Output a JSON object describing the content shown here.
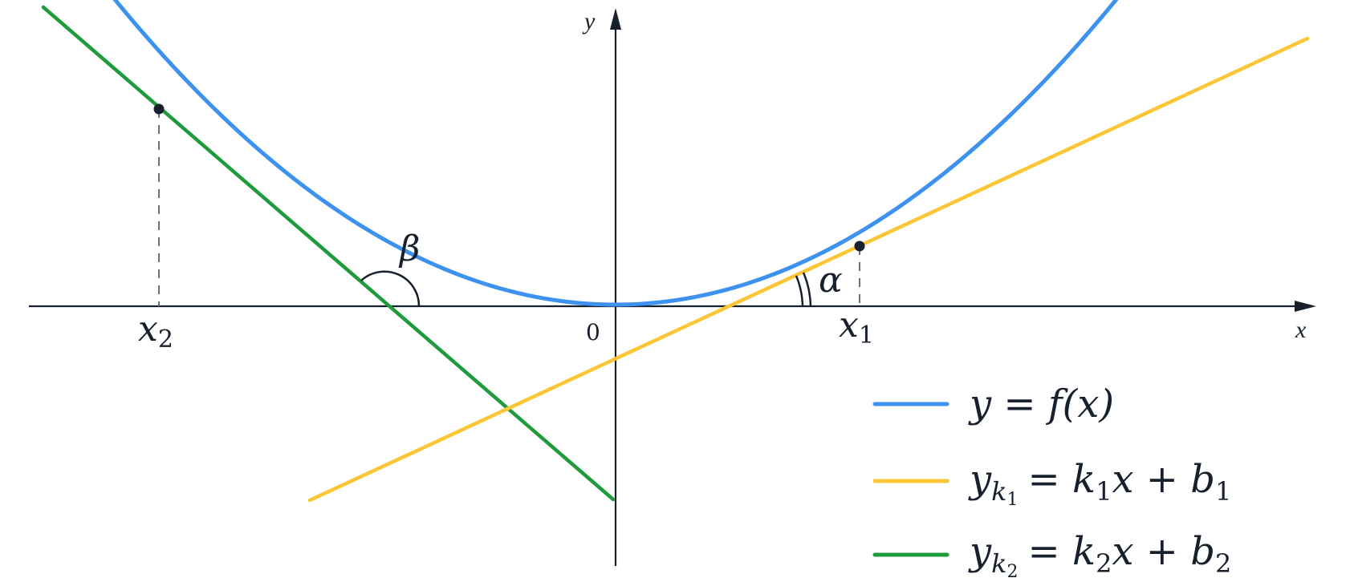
{
  "axes": {
    "x_label": "x",
    "y_label": "y",
    "origin_label": "0"
  },
  "points": {
    "x1": {
      "base": "x",
      "sub": "1"
    },
    "x2": {
      "base": "x",
      "sub": "2"
    }
  },
  "angles": {
    "alpha": "α",
    "beta": "β"
  },
  "legend": [
    {
      "name": "legend-item-curve",
      "color": "#3d92f0",
      "text": "y = f(x)"
    },
    {
      "name": "legend-item-tangent-1",
      "color": "#fbc534",
      "lhs_base": "y",
      "lhs_sub": "k",
      "lhs_subsub": "1",
      "rhs": "= k",
      "rhs_sub": "1",
      "rhs_tail": "x + b",
      "rhs_tail_sub": "1"
    },
    {
      "name": "legend-item-tangent-2",
      "color": "#1f9b3c",
      "lhs_base": "y",
      "lhs_sub": "k",
      "lhs_subsub": "2",
      "rhs": "= k",
      "rhs_sub": "2",
      "rhs_tail": "x + b",
      "rhs_tail_sub": "2"
    }
  ],
  "colors": {
    "curve": "#3d92f0",
    "tangent_1": "#fbc534",
    "tangent_2": "#1f9b3c",
    "axis": "#17202c",
    "guide": "#6b7278"
  }
}
